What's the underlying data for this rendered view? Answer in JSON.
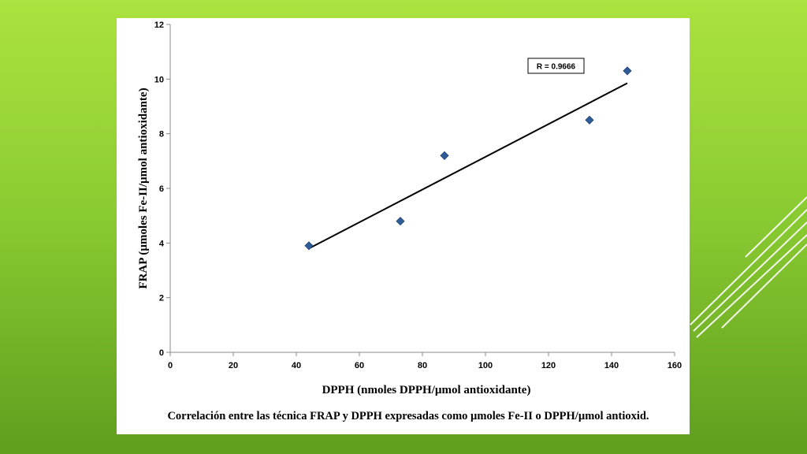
{
  "chart_data": {
    "type": "scatter",
    "title": "",
    "xlabel": "DPPH  (nmoles DPPH/µmol antioxidante)",
    "ylabel": "FRAP  (µmoles Fe-II/µmol antioxidante)",
    "xlim": [
      0,
      160
    ],
    "ylim": [
      0,
      12
    ],
    "xticks": [
      "0",
      "20",
      "40",
      "60",
      "80",
      "100",
      "120",
      "140",
      "160"
    ],
    "yticks": [
      "0",
      "2",
      "4",
      "6",
      "8",
      "10",
      "12"
    ],
    "grid": false,
    "legend": "none",
    "marker_color": "#2f5d9a",
    "points": [
      {
        "x": 44,
        "y": 3.9
      },
      {
        "x": 73,
        "y": 4.8
      },
      {
        "x": 87,
        "y": 7.2
      },
      {
        "x": 133,
        "y": 8.5
      },
      {
        "x": 145,
        "y": 10.3
      }
    ],
    "trendline": {
      "x1": 44,
      "y1": 3.8,
      "x2": 145,
      "y2": 9.85
    },
    "annotation": "R = 0.9666",
    "caption": "Correlación  entre  las  técnica  FRAP  y  DPPH  expresadas  como  µmoles  Fe-II  o  DPPH/µmol  antioxid."
  }
}
